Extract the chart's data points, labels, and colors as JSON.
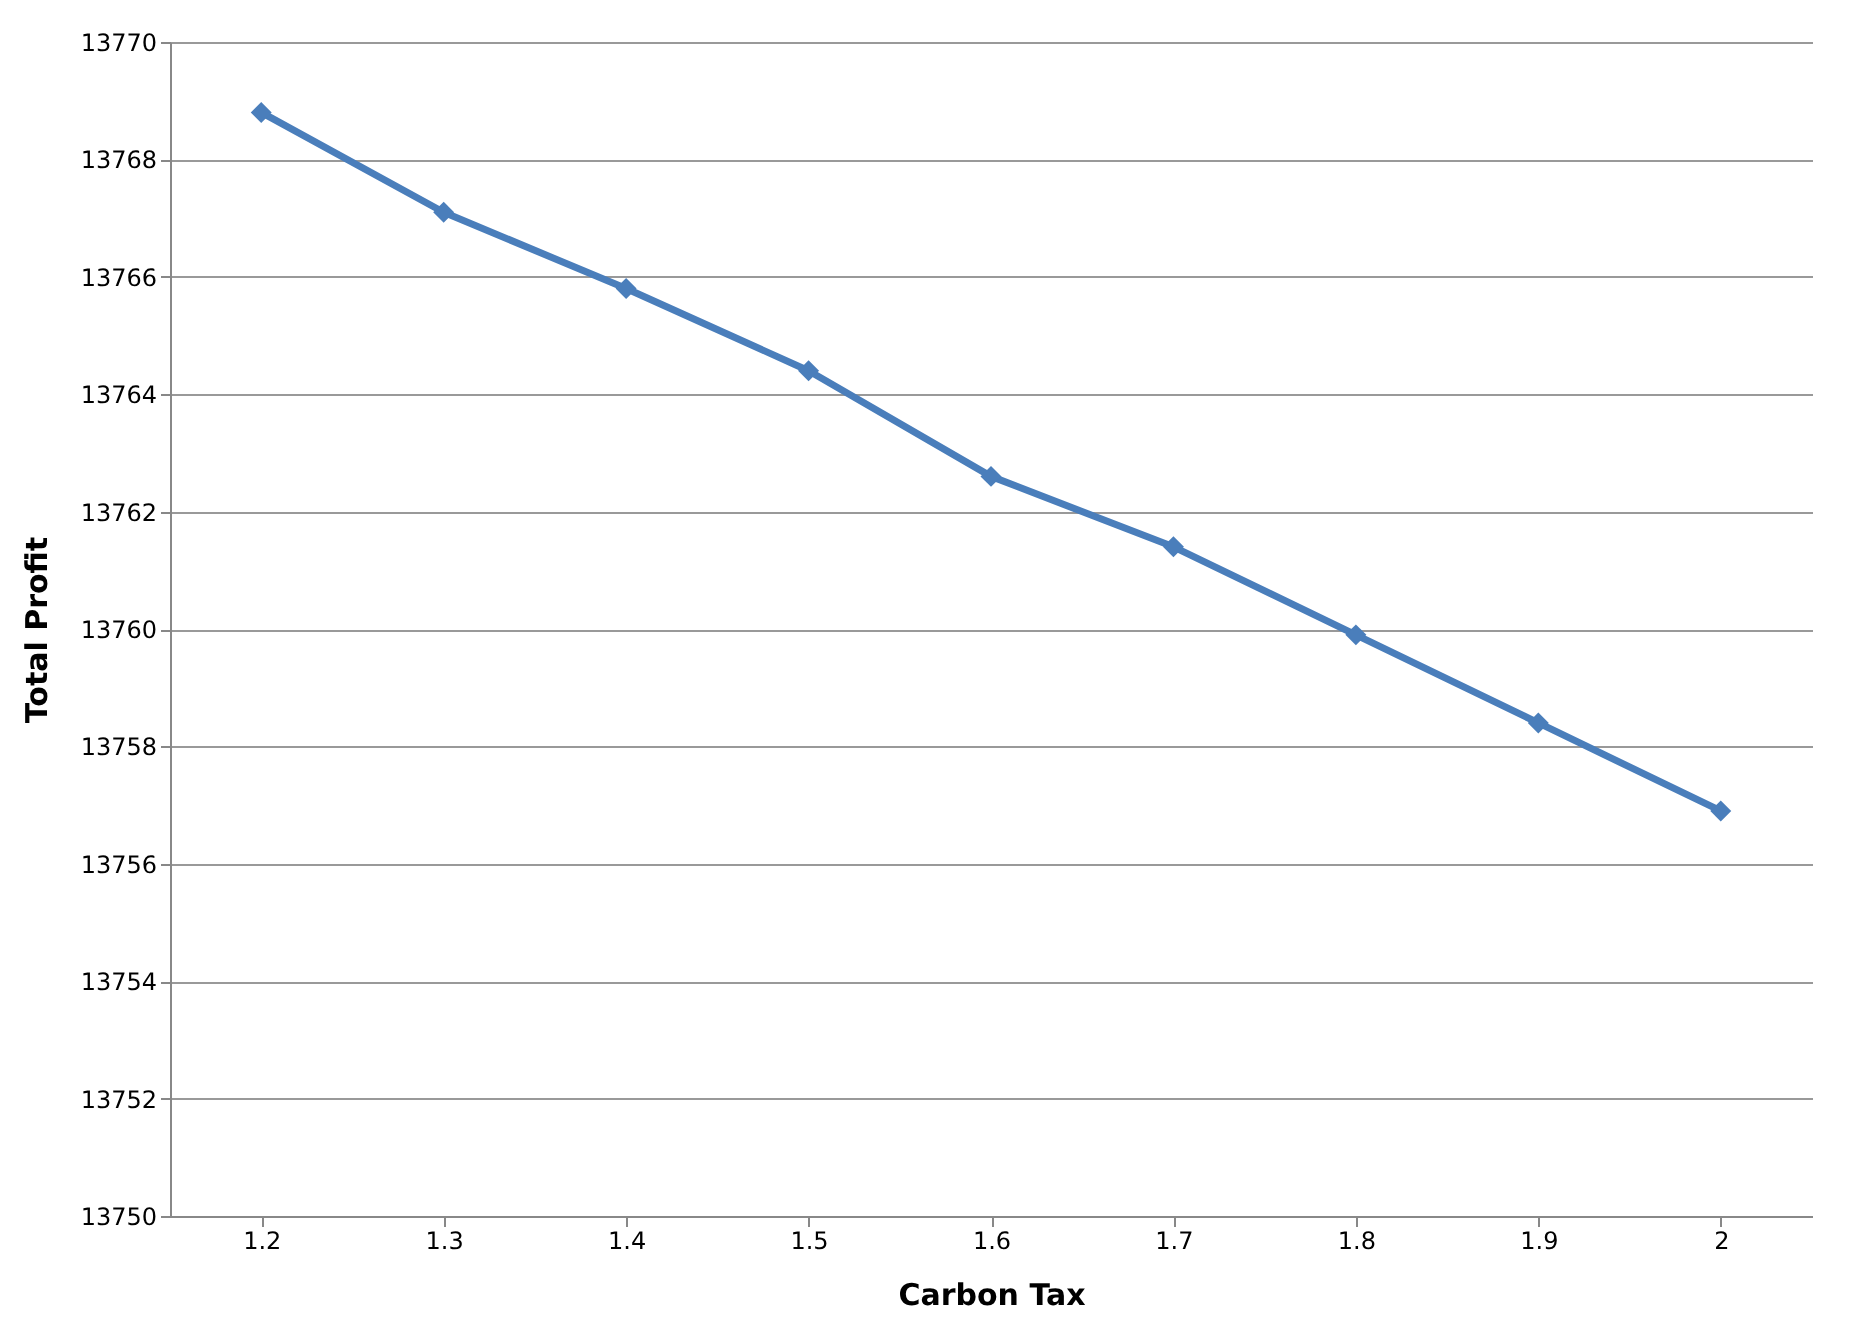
{
  "chart_data": {
    "type": "line",
    "xlabel": "Carbon Tax",
    "ylabel": "Total Profit",
    "categories": [
      "1.2",
      "1.3",
      "1.4",
      "1.5",
      "1.6",
      "1.7",
      "1.8",
      "1.9",
      "2"
    ],
    "series": [
      {
        "color": "#4a7ebb",
        "values": [
          13768.8,
          13767.1,
          13765.8,
          13764.4,
          13762.6,
          13761.4,
          13759.9,
          13758.4,
          13756.9
        ]
      }
    ],
    "ylim": [
      13750,
      13770
    ],
    "yticks": [
      13750,
      13752,
      13754,
      13756,
      13758,
      13760,
      13762,
      13764,
      13766,
      13768,
      13770
    ],
    "grid": "y",
    "marker": "diamond",
    "line_style": "solid"
  }
}
